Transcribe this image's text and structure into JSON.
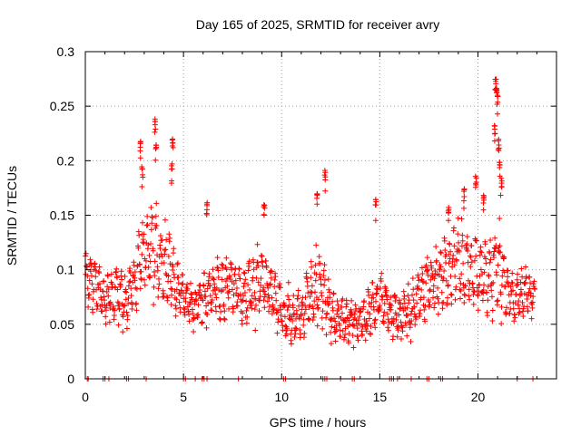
{
  "chart_data": {
    "type": "scatter",
    "title": "Day 165 of 2025, SRMTID for receiver avry",
    "xlabel": "GPS time / hours",
    "ylabel": "SRMTID / TECUs",
    "xlim": [
      0,
      24
    ],
    "ylim": [
      0,
      0.3
    ],
    "x_ticks": [
      "0",
      "5",
      "10",
      "15",
      "20"
    ],
    "y_ticks": [
      "0",
      "0.05",
      "0.1",
      "0.15",
      "0.2",
      "0.25",
      "0.3"
    ],
    "grid": true,
    "marker": "+",
    "marker_color": "#ff0000",
    "series": [
      {
        "name": "SRMTID",
        "trend": {
          "x": [
            0,
            0.5,
            1,
            1.5,
            2,
            2.5,
            2.8,
            3,
            3.5,
            3.8,
            4.2,
            4.5,
            5,
            5.5,
            6,
            6.5,
            7,
            7.5,
            8,
            8.5,
            9,
            9.5,
            10,
            10.5,
            11,
            11.5,
            12,
            12.5,
            13,
            13.5,
            14,
            14.5,
            15,
            15.5,
            16,
            16.5,
            17,
            17.5,
            18,
            18.5,
            19,
            19.5,
            20,
            20.5,
            21,
            21.5,
            22,
            22.5,
            22.9
          ],
          "y": [
            0.095,
            0.085,
            0.075,
            0.08,
            0.07,
            0.09,
            0.11,
            0.115,
            0.12,
            0.11,
            0.1,
            0.09,
            0.075,
            0.065,
            0.075,
            0.08,
            0.08,
            0.085,
            0.075,
            0.085,
            0.09,
            0.08,
            0.06,
            0.055,
            0.06,
            0.08,
            0.085,
            0.06,
            0.055,
            0.055,
            0.05,
            0.065,
            0.075,
            0.065,
            0.055,
            0.06,
            0.075,
            0.085,
            0.09,
            0.1,
            0.105,
            0.1,
            0.1,
            0.09,
            0.11,
            0.08,
            0.075,
            0.08,
            0.075
          ],
          "spread": [
            0.03,
            0.03,
            0.025,
            0.03,
            0.03,
            0.035,
            0.04,
            0.04,
            0.045,
            0.045,
            0.04,
            0.035,
            0.025,
            0.025,
            0.03,
            0.03,
            0.03,
            0.03,
            0.03,
            0.035,
            0.035,
            0.03,
            0.025,
            0.025,
            0.03,
            0.035,
            0.035,
            0.03,
            0.025,
            0.025,
            0.02,
            0.03,
            0.03,
            0.025,
            0.025,
            0.025,
            0.03,
            0.035,
            0.035,
            0.04,
            0.04,
            0.04,
            0.04,
            0.04,
            0.05,
            0.03,
            0.025,
            0.025,
            0.02
          ]
        },
        "peaks": [
          {
            "x": 2.8,
            "y": 0.22
          },
          {
            "x": 2.9,
            "y": 0.195
          },
          {
            "x": 3.55,
            "y": 0.24
          },
          {
            "x": 3.6,
            "y": 0.215
          },
          {
            "x": 4.45,
            "y": 0.223
          },
          {
            "x": 4.4,
            "y": 0.2
          },
          {
            "x": 6.2,
            "y": 0.162
          },
          {
            "x": 9.1,
            "y": 0.16
          },
          {
            "x": 11.8,
            "y": 0.17
          },
          {
            "x": 12.2,
            "y": 0.192
          },
          {
            "x": 14.8,
            "y": 0.165
          },
          {
            "x": 18.5,
            "y": 0.16
          },
          {
            "x": 19.3,
            "y": 0.175
          },
          {
            "x": 19.9,
            "y": 0.19
          },
          {
            "x": 20.3,
            "y": 0.17
          },
          {
            "x": 20.9,
            "y": 0.278
          },
          {
            "x": 20.95,
            "y": 0.27
          },
          {
            "x": 21.0,
            "y": 0.26
          },
          {
            "x": 20.85,
            "y": 0.24
          },
          {
            "x": 21.05,
            "y": 0.22
          },
          {
            "x": 21.1,
            "y": 0.2
          },
          {
            "x": 21.2,
            "y": 0.185
          }
        ],
        "zero_points_x": [
          0.1,
          0.15,
          0.9,
          1.0,
          1.2,
          2.1,
          2.2,
          3.1,
          5.0,
          5.1,
          5.6,
          5.95,
          6.05,
          6.2,
          7.8,
          10.1,
          10.2,
          12.1,
          12.2,
          12.3,
          13.0,
          13.6,
          13.7,
          15.5,
          15.6,
          15.7,
          15.9,
          16.6,
          17.4,
          17.5,
          18.1,
          18.2,
          22.0,
          22.8
        ]
      }
    ]
  }
}
